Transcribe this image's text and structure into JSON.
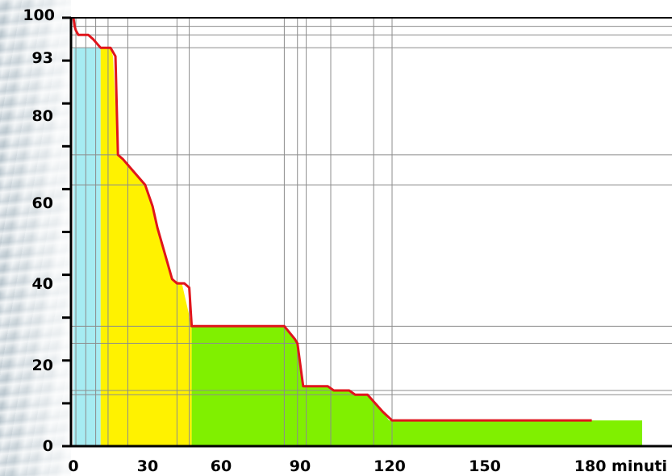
{
  "chart_data": {
    "type": "area",
    "xlabel": "minuti",
    "x_tick_labels": [
      "0",
      "30",
      "60",
      "90",
      "120",
      "150",
      "180 minuti"
    ],
    "y_tick_labels": [
      "0",
      "20",
      "40",
      "60",
      "80",
      "93",
      "100"
    ],
    "xlim": [
      0,
      180
    ],
    "ylim": [
      0,
      100
    ],
    "grid": true,
    "x_gridlines": [
      1,
      5,
      9,
      14,
      22,
      42,
      47,
      84,
      89,
      92,
      100,
      114,
      120
    ],
    "y_gridlines": [
      12,
      13,
      24,
      28,
      61,
      68,
      93,
      96,
      98
    ],
    "regions": [
      {
        "color": "#a6ecf2",
        "x": [
          0,
          11
        ],
        "top": 93
      },
      {
        "color": "#fff200",
        "x": [
          11,
          48
        ],
        "points": [
          [
            11,
            93
          ],
          [
            15,
            93
          ],
          [
            16,
            91
          ],
          [
            18,
            68
          ],
          [
            20,
            67
          ],
          [
            23,
            65
          ],
          [
            26,
            63
          ],
          [
            29,
            61
          ],
          [
            32,
            56
          ],
          [
            34,
            51
          ],
          [
            36,
            47
          ],
          [
            38,
            43
          ],
          [
            40,
            39
          ],
          [
            44,
            38
          ],
          [
            48,
            28
          ]
        ]
      },
      {
        "color": "#80f000",
        "x": [
          48,
          200
        ],
        "points": [
          [
            48,
            28
          ],
          [
            84,
            28
          ],
          [
            88,
            25
          ],
          [
            89,
            24
          ],
          [
            91,
            14
          ],
          [
            99,
            14
          ],
          [
            101,
            13
          ],
          [
            106,
            13
          ],
          [
            108,
            12
          ],
          [
            112,
            12
          ],
          [
            117,
            8
          ],
          [
            119,
            6
          ],
          [
            200,
            6
          ]
        ]
      }
    ],
    "series": [
      {
        "color": "#e0151c",
        "x": [
          0,
          0.5,
          1,
          2,
          6,
          8,
          11,
          15,
          17,
          18,
          20,
          23,
          26,
          29,
          32,
          34,
          36,
          38,
          40,
          42,
          45,
          47,
          48,
          84,
          88,
          89,
          91,
          99,
          101,
          106,
          108,
          112,
          117,
          120,
          184
        ],
        "y": [
          100,
          98,
          97,
          96,
          96,
          95,
          93,
          93,
          91,
          68,
          67,
          65,
          63,
          61,
          56,
          51,
          47,
          43,
          39,
          38,
          38,
          37,
          28,
          28,
          25,
          24,
          14,
          14,
          13,
          13,
          12,
          12,
          8,
          6,
          6
        ]
      }
    ]
  }
}
